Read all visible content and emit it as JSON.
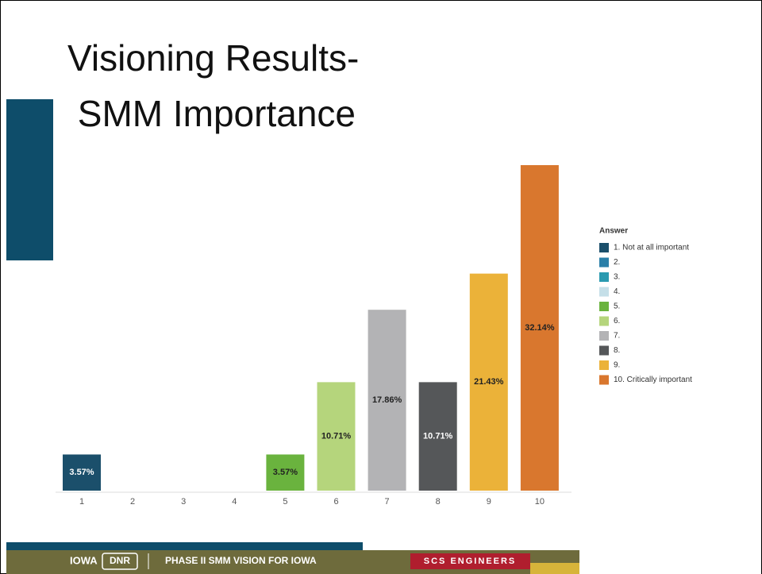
{
  "chart_data": {
    "type": "bar",
    "title": [
      "Visioning Results-",
      " SMM Importance"
    ],
    "categories": [
      "1",
      "2",
      "3",
      "4",
      "5",
      "6",
      "7",
      "8",
      "9",
      "10"
    ],
    "values": [
      3.57,
      0,
      0,
      0,
      3.57,
      10.71,
      17.86,
      10.71,
      21.43,
      32.14
    ],
    "value_labels": [
      "3.57%",
      null,
      null,
      null,
      "3.57%",
      "10.71%",
      "17.86%",
      "10.71%",
      "21.43%",
      "32.14%"
    ],
    "colors": [
      "#1b4f6b",
      "#2a7fa8",
      "#2a9ab0",
      "#c5dfe8",
      "#6ab33e",
      "#b5d57c",
      "#b3b3b5",
      "#555759",
      "#ebb239",
      "#d9772e"
    ],
    "legend": {
      "title": "Answer",
      "labels": [
        "1. Not at all important",
        "2.",
        "3.",
        "4.",
        "5.",
        "6.",
        "7.",
        "8.",
        "9.",
        "10. Critically important"
      ]
    }
  },
  "footer": {
    "left": "IOWA",
    "logo": "DNR",
    "center": "PHASE II SMM VISION FOR IOWA",
    "right": "SCS ENGINEERS"
  }
}
